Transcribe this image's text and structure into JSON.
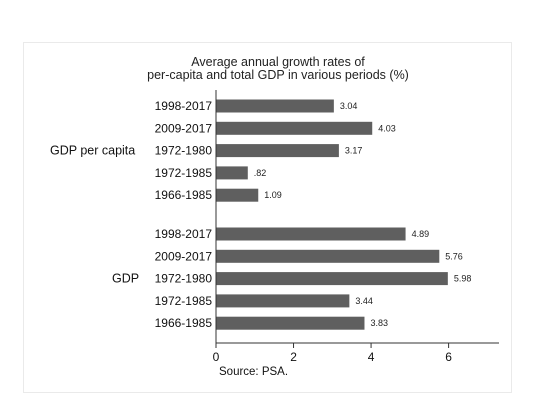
{
  "chart_data": {
    "type": "bar",
    "orientation": "horizontal",
    "title_lines": [
      "Average annual growth rates of",
      "per-capita and total GDP in various periods (%)"
    ],
    "groups": [
      {
        "name": "GDP per capita",
        "categories": [
          "1998-2017",
          "2009-2017",
          "1972-1980",
          "1972-1985",
          "1966-1985"
        ],
        "values": [
          3.04,
          4.03,
          3.17,
          0.82,
          1.09
        ],
        "value_labels": [
          "3.04",
          "4.03",
          "3.17",
          ".82",
          "1.09"
        ]
      },
      {
        "name": "GDP",
        "categories": [
          "1998-2017",
          "2009-2017",
          "1972-1980",
          "1972-1985",
          "1966-1985"
        ],
        "values": [
          4.89,
          5.76,
          5.98,
          3.44,
          3.83
        ],
        "value_labels": [
          "4.89",
          "5.76",
          "5.98",
          "3.44",
          "3.83"
        ]
      }
    ],
    "x_ticks": [
      "0",
      "2",
      "4",
      "6"
    ],
    "xlim": [
      0,
      7.3
    ],
    "source": "Source: PSA.",
    "grid": false,
    "colors": {
      "bar": "#5f5f5f",
      "axis": "#333333"
    }
  }
}
